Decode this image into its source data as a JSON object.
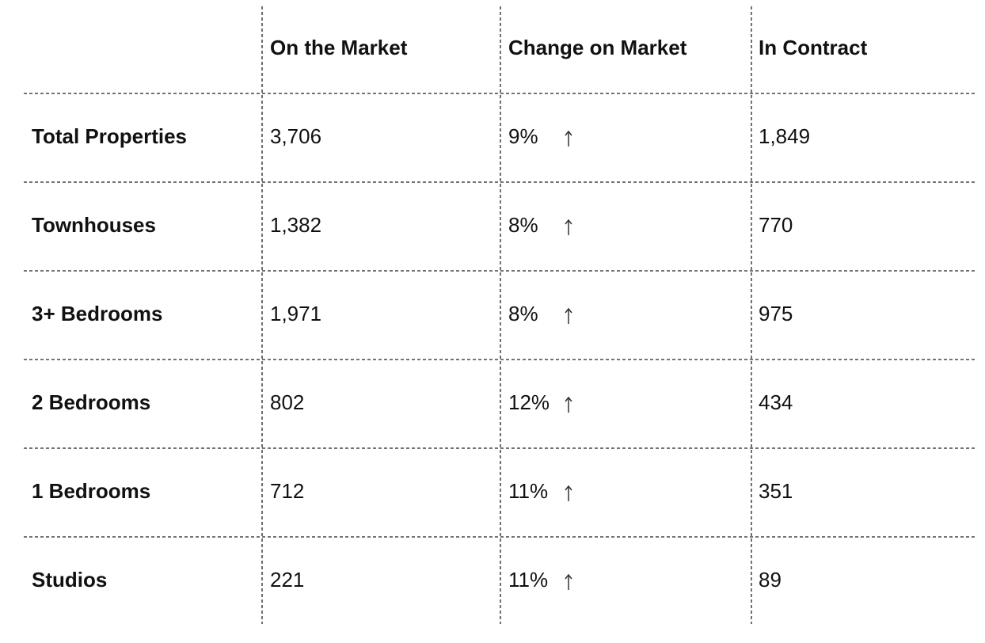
{
  "table": {
    "columns": [
      "On the Market",
      "Change on Market",
      "In Contract"
    ],
    "rows": [
      [
        "Total Properties",
        "3,706",
        "9%",
        "1,849"
      ],
      [
        "Townhouses",
        "1,382",
        "8%",
        "770"
      ],
      [
        "3+ Bedrooms",
        "1,971",
        "8%",
        "975"
      ],
      [
        "2 Bedrooms",
        "802",
        "12%",
        "434"
      ],
      [
        "1 Bedrooms",
        "712",
        "11%",
        "351"
      ],
      [
        "Studios",
        "221",
        "11%",
        "89"
      ]
    ]
  }
}
